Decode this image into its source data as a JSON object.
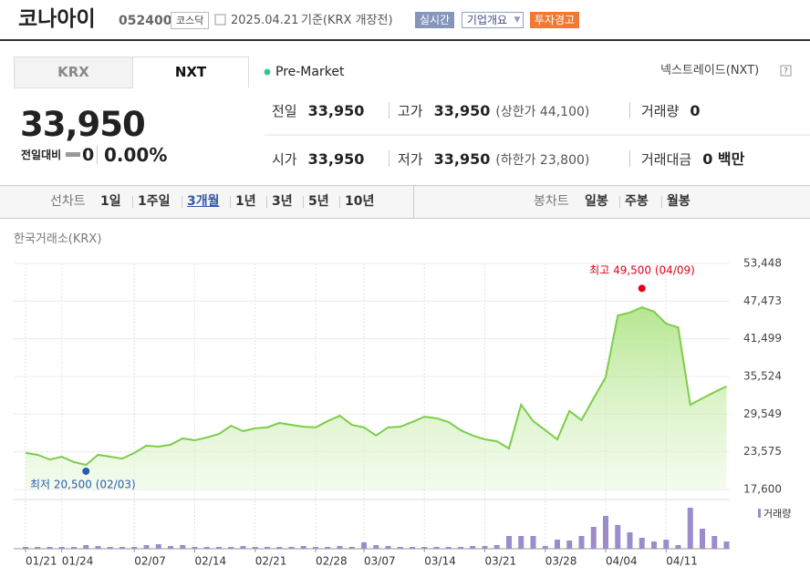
{
  "header": {
    "title": "코나아이",
    "code": "052400",
    "market": "코스닥",
    "date": "2025.04.21",
    "basis": "기준(KRX 개장전)",
    "buttons": [
      "실시간",
      "기업개요",
      "투자경고"
    ]
  },
  "tabs": [
    "KRX",
    "NXT"
  ],
  "session": "Pre-Market",
  "venue": "넥스트레이드(NXT)",
  "price": "33,950",
  "change": {
    "label": "전일대비",
    "value": "0",
    "rate": "0.00%"
  },
  "quote": {
    "rows": [
      [
        {
          "label": "전일",
          "value": "33,950"
        },
        {
          "label": "고가",
          "value": "33,950",
          "note": "(상한가 44,100)"
        },
        {
          "label": "거래량",
          "value": "0"
        }
      ],
      [
        {
          "label": "시가",
          "value": "33,950"
        },
        {
          "label": "저가",
          "value": "33,950",
          "note": "(하한가 23,800)"
        },
        {
          "label": "거래대금",
          "value": "0 백만"
        }
      ]
    ]
  },
  "periods": {
    "line_label": "선차트",
    "line": [
      "1일",
      "1주일",
      "3개월",
      "1년",
      "3년",
      "5년",
      "10년"
    ],
    "selected_index": 2,
    "candle_label": "봉차트",
    "candle": [
      "일봉",
      "주봉",
      "월봉"
    ]
  },
  "source": "한국거래소(KRX)",
  "chart_data": {
    "type": "line",
    "categories": [
      "01/21",
      null,
      null,
      "01/24",
      null,
      null,
      null,
      null,
      null,
      "02/07",
      null,
      null,
      null,
      null,
      "02/14",
      null,
      null,
      null,
      null,
      "02/21",
      null,
      null,
      null,
      null,
      "02/28",
      null,
      null,
      null,
      "03/07",
      null,
      null,
      null,
      null,
      "03/14",
      null,
      null,
      null,
      null,
      "03/21",
      null,
      null,
      null,
      null,
      "03/28",
      null,
      null,
      null,
      null,
      "04/04",
      null,
      null,
      null,
      null,
      "04/11",
      null,
      null,
      null,
      null,
      null
    ],
    "series": [
      {
        "color": "#7ccd4a",
        "values": [
          23400,
          23100,
          22350,
          22800,
          21950,
          21500,
          23100,
          22800,
          22500,
          23400,
          24550,
          24400,
          24700,
          25700,
          25400,
          25850,
          26400,
          27700,
          26850,
          27300,
          27450,
          28150,
          27850,
          27550,
          27450,
          28450,
          29300,
          27850,
          27450,
          26150,
          27450,
          27550,
          28300,
          29150,
          28900,
          28300,
          27000,
          26150,
          25550,
          25250,
          24100,
          31050,
          28450,
          27000,
          25550,
          30050,
          28600,
          32050,
          35400,
          45200,
          45650,
          46500,
          45800,
          43900,
          43300,
          31050,
          32050,
          33050,
          33950
        ]
      },
      {
        "name": "거래량",
        "type": "bar",
        "color": "#9c8ccb",
        "values": [
          2,
          2,
          2,
          2,
          2,
          4,
          3,
          2,
          2,
          2,
          4,
          5,
          3,
          4,
          2,
          2,
          2,
          2,
          3,
          2,
          2,
          2,
          2,
          3,
          2,
          2,
          3,
          2,
          7,
          4,
          3,
          2,
          2,
          2,
          2,
          2,
          2,
          3,
          3,
          4,
          14,
          14,
          14,
          3,
          10,
          9,
          14,
          24,
          36,
          26,
          18,
          12,
          8,
          10,
          4,
          45,
          22,
          14,
          8
        ]
      }
    ],
    "ylim": [
      17600,
      53448
    ],
    "yticks": [
      {
        "value": 17600,
        "label": "17,600"
      },
      {
        "value": 23575,
        "label": "23,575"
      },
      {
        "value": 29549,
        "label": "29,549"
      },
      {
        "value": 35524,
        "label": "35,524"
      },
      {
        "value": 41499,
        "label": "41,499"
      },
      {
        "value": 47473,
        "label": "47,473"
      },
      {
        "value": 53448,
        "label": "53,448"
      }
    ],
    "annotations": [
      {
        "text": "최고 49,500 (04/09)",
        "value": 49500,
        "color": "#e2001a"
      },
      {
        "text": "최저 20,500 (02/03)",
        "value": 20500,
        "color": "#2a5db0"
      }
    ],
    "grid": true
  }
}
